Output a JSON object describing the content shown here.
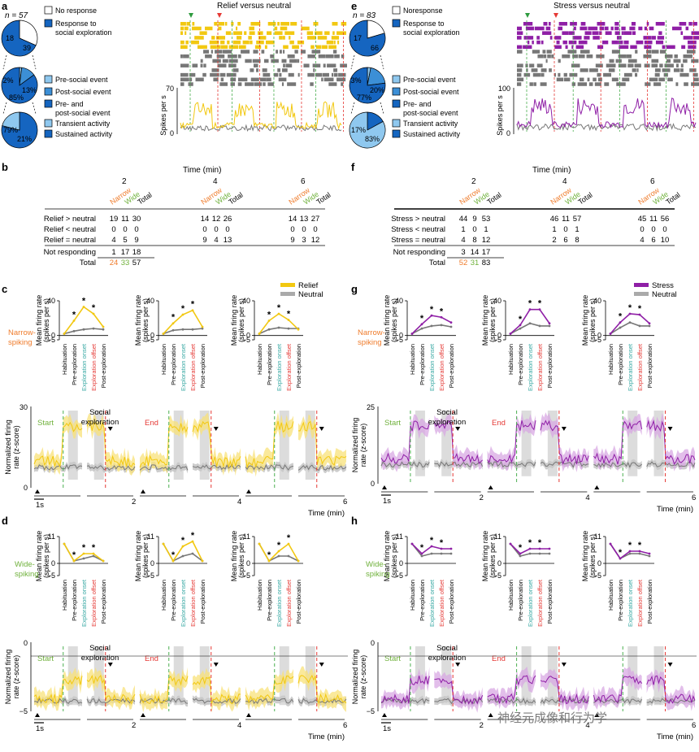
{
  "colors": {
    "relief": "#f2c811",
    "relief_fill": "#f8e27a",
    "stress": "#8f1fa6",
    "stress_fill": "#d8a8e3",
    "neutral": "#777777",
    "neutral_fill": "#c8c8c8",
    "narrow": "#ef7c2c",
    "wide": "#70b13c",
    "start_line": "#4caf50",
    "end_line": "#e53935",
    "onset": "#35a7a2",
    "offset": "#e53935",
    "pie_dark": "#1565c0",
    "pie_mid": "#3c8fd6",
    "pie_light": "#8fc8ef"
  },
  "panel_letters": [
    "a",
    "b",
    "c",
    "d",
    "e",
    "f",
    "g",
    "h"
  ],
  "watermark": "神经元成像和行为学",
  "panel_a": {
    "n_label": "n = 57",
    "pie1": {
      "values": [
        18,
        39
      ],
      "labels": [
        "18",
        "39"
      ]
    },
    "pie2": {
      "values": [
        2,
        13,
        85
      ],
      "labels": [
        "2%",
        "13%",
        "85%"
      ]
    },
    "pie3": {
      "values": [
        79,
        21
      ],
      "labels": [
        "79%",
        "21%"
      ]
    },
    "legend": [
      "No response",
      "Response to social exploration",
      "Pre-social event",
      "Post-social event",
      "Pre- and post-social event",
      "Transient activity",
      "Sustained activity"
    ],
    "raster_title": "Relief versus neutral",
    "y_label": "Spikes per s",
    "y_max": "70",
    "y_min": "0"
  },
  "panel_e": {
    "n_label": "n = 83",
    "pie1": {
      "values": [
        17,
        66
      ],
      "labels": [
        "17",
        "66"
      ]
    },
    "pie2": {
      "values": [
        3,
        20,
        77
      ],
      "labels": [
        "3%",
        "20%",
        "77%"
      ]
    },
    "pie3": {
      "values": [
        17,
        83
      ],
      "labels": [
        "17%",
        "83%"
      ]
    },
    "legend": [
      "Noresponse",
      "Response to social exploration",
      "Pre-social event",
      "Post-social event",
      "Pre- and post-social event",
      "Transient activity",
      "Sustained activity"
    ],
    "raster_title": "Stress versus neutral",
    "y_label": "Spikes per s",
    "y_max": "100",
    "y_min": "0"
  },
  "table_b": {
    "time_header": "Time (min)",
    "times": [
      "2",
      "4",
      "6"
    ],
    "col_labels": [
      "Narrow",
      "Wide",
      "Total"
    ],
    "rows": [
      {
        "label": "Relief > neutral",
        "values": [
          "19",
          "11",
          "30",
          "14",
          "12",
          "26",
          "14",
          "13",
          "27"
        ]
      },
      {
        "label": "Relief < neutral",
        "values": [
          "0",
          "0",
          "0",
          "0",
          "0",
          "0",
          "0",
          "0",
          "0"
        ]
      },
      {
        "label": "Relief = neutral",
        "values": [
          "4",
          "5",
          "9",
          "9",
          "4",
          "13",
          "9",
          "3",
          "12"
        ]
      },
      {
        "label": "Not responding",
        "values": [
          "1",
          "17",
          "18"
        ]
      },
      {
        "label": "Total",
        "values": [
          "24",
          "33",
          "57"
        ]
      }
    ]
  },
  "table_f": {
    "time_header": "Time (min)",
    "times": [
      "2",
      "4",
      "6"
    ],
    "col_labels": [
      "Narrow",
      "Wide",
      "Total"
    ],
    "rows": [
      {
        "label": "Stress > neutral",
        "values": [
          "44",
          "9",
          "53",
          "46",
          "11",
          "57",
          "45",
          "11",
          "56"
        ]
      },
      {
        "label": "Stress < neutral",
        "values": [
          "1",
          "0",
          "1",
          "1",
          "0",
          "1",
          "0",
          "0",
          "0"
        ]
      },
      {
        "label": "Stress = neutral",
        "values": [
          "4",
          "8",
          "12",
          "2",
          "6",
          "8",
          "4",
          "6",
          "10"
        ]
      },
      {
        "label": "Not responding",
        "values": [
          "3",
          "14",
          "17"
        ]
      },
      {
        "label": "Total",
        "values": [
          "52",
          "31",
          "83"
        ]
      }
    ]
  },
  "event_labels": [
    "Habituation",
    "Pre-exploration",
    "Exploration onset",
    "Exploration offset",
    "Post-exploration"
  ],
  "mean_rate_ylabel": [
    "Mean firing rate",
    "(spikes per s)"
  ],
  "norm_ylabel": [
    "Normalized firing",
    "rate (z-score)"
  ],
  "row_labels": {
    "narrow": [
      "Narrow-",
      "spiking"
    ],
    "wide": [
      "Wide-",
      "spiking"
    ]
  },
  "trace_labels": {
    "start": "Start",
    "social": [
      "Social",
      "exploration"
    ],
    "end": "End",
    "scale": "1s",
    "time_axis": "Time (min)",
    "time_ticks": [
      "2",
      "4",
      "6"
    ]
  },
  "panel_c": {
    "legend": [
      "Relief",
      "Neutral"
    ],
    "y_ticks": [
      "40",
      "0",
      "−5"
    ],
    "stars": "*",
    "trace_yticks": [
      "30",
      "0"
    ]
  },
  "panel_d": {
    "y_ticks": [
      "11",
      "0",
      "−5"
    ],
    "trace_yticks": [
      "0",
      "−5"
    ]
  },
  "panel_g": {
    "legend": [
      "Stress",
      "Neutral"
    ],
    "y_ticks": [
      "40",
      "0",
      "−5"
    ],
    "trace_yticks": [
      "25",
      "0"
    ]
  },
  "panel_h": {
    "y_ticks": [
      "11",
      "0",
      "−5"
    ],
    "trace_yticks": [
      "0",
      "−5"
    ]
  },
  "chart_data": [
    {
      "type": "line",
      "title": "c narrow relief 2 min",
      "categories": [
        "Habituation",
        "Pre-exploration",
        "Exploration onset",
        "Exploration offset",
        "Post-exploration"
      ],
      "series": [
        {
          "name": "Relief",
          "values": [
            2,
            17,
            33,
            25,
            10
          ]
        },
        {
          "name": "Neutral",
          "values": [
            2,
            5,
            7,
            8,
            7
          ]
        }
      ],
      "ylim": [
        -5,
        40
      ]
    },
    {
      "type": "line",
      "title": "c narrow relief 4 min",
      "categories": [
        "Habituation",
        "Pre-exploration",
        "Exploration onset",
        "Exploration offset",
        "Post-exploration"
      ],
      "series": [
        {
          "name": "Relief",
          "values": [
            2,
            14,
            24,
            29,
            10
          ]
        },
        {
          "name": "Neutral",
          "values": [
            2,
            6,
            7,
            7,
            8
          ]
        }
      ],
      "ylim": [
        -5,
        40
      ]
    },
    {
      "type": "line",
      "title": "c narrow relief 6 min",
      "categories": [
        "Habituation",
        "Pre-exploration",
        "Exploration onset",
        "Exploration offset",
        "Post-exploration"
      ],
      "series": [
        {
          "name": "Relief",
          "values": [
            2,
            17,
            25,
            18,
            7
          ]
        },
        {
          "name": "Neutral",
          "values": [
            2,
            7,
            9,
            8,
            8
          ]
        }
      ],
      "ylim": [
        -5,
        40
      ]
    },
    {
      "type": "line",
      "title": "d wide relief 2 min",
      "categories": [
        "Habituation",
        "Pre-exploration",
        "Exploration onset",
        "Exploration offset",
        "Post-exploration"
      ],
      "series": [
        {
          "name": "Relief",
          "values": [
            8,
            1,
            4,
            4,
            1
          ]
        },
        {
          "name": "Neutral",
          "values": [
            8,
            1,
            2,
            3,
            1
          ]
        }
      ],
      "ylim": [
        -5,
        11
      ]
    },
    {
      "type": "line",
      "title": "d wide relief 4 min",
      "categories": [
        "Habituation",
        "Pre-exploration",
        "Exploration onset",
        "Exploration offset",
        "Post-exploration"
      ],
      "series": [
        {
          "name": "Relief",
          "values": [
            8,
            1,
            7,
            9,
            1
          ]
        },
        {
          "name": "Neutral",
          "values": [
            8,
            1,
            3,
            4,
            1
          ]
        }
      ],
      "ylim": [
        -5,
        11
      ]
    },
    {
      "type": "line",
      "title": "d wide relief 6 min",
      "categories": [
        "Habituation",
        "Pre-exploration",
        "Exploration onset",
        "Exploration offset",
        "Post-exploration"
      ],
      "series": [
        {
          "name": "Relief",
          "values": [
            8,
            1,
            5,
            8,
            1
          ]
        },
        {
          "name": "Neutral",
          "values": [
            8,
            1,
            3,
            3,
            1
          ]
        }
      ],
      "ylim": [
        -5,
        11
      ]
    },
    {
      "type": "line",
      "title": "g narrow stress 2 min",
      "categories": [
        "Habituation",
        "Pre-exploration",
        "Exploration onset",
        "Exploration offset",
        "Post-exploration"
      ],
      "series": [
        {
          "name": "Stress",
          "values": [
            2,
            13,
            23,
            21,
            15
          ]
        },
        {
          "name": "Neutral",
          "values": [
            2,
            8,
            11,
            12,
            10
          ]
        }
      ],
      "ylim": [
        -5,
        40
      ]
    },
    {
      "type": "line",
      "title": "g narrow stress 4 min",
      "categories": [
        "Habituation",
        "Pre-exploration",
        "Exploration onset",
        "Exploration offset",
        "Post-exploration"
      ],
      "series": [
        {
          "name": "Stress",
          "values": [
            2,
            12,
            30,
            30,
            14
          ]
        },
        {
          "name": "Neutral",
          "values": [
            2,
            8,
            14,
            11,
            11
          ]
        }
      ],
      "ylim": [
        -5,
        40
      ]
    },
    {
      "type": "line",
      "title": "g narrow stress 6 min",
      "categories": [
        "Habituation",
        "Pre-exploration",
        "Exploration onset",
        "Exploration offset",
        "Post-exploration"
      ],
      "series": [
        {
          "name": "Stress",
          "values": [
            2,
            15,
            25,
            24,
            14
          ]
        },
        {
          "name": "Neutral",
          "values": [
            2,
            9,
            15,
            11,
            11
          ]
        }
      ],
      "ylim": [
        -5,
        40
      ]
    },
    {
      "type": "line",
      "title": "h wide stress 2 min",
      "categories": [
        "Habituation",
        "Pre-exploration",
        "Exploration onset",
        "Exploration offset",
        "Post-exploration"
      ],
      "series": [
        {
          "name": "Stress",
          "values": [
            8,
            4,
            7,
            6,
            6
          ]
        },
        {
          "name": "Neutral",
          "values": [
            8,
            3,
            4,
            4,
            4
          ]
        }
      ],
      "ylim": [
        -5,
        11
      ]
    },
    {
      "type": "line",
      "title": "h wide stress 4 min",
      "categories": [
        "Habituation",
        "Pre-exploration",
        "Exploration onset",
        "Exploration offset",
        "Post-exploration"
      ],
      "series": [
        {
          "name": "Stress",
          "values": [
            8,
            4,
            6,
            6,
            6
          ]
        },
        {
          "name": "Neutral",
          "values": [
            8,
            3,
            4,
            4,
            4
          ]
        }
      ],
      "ylim": [
        -5,
        11
      ]
    },
    {
      "type": "line",
      "title": "h wide stress 6 min",
      "categories": [
        "Habituation",
        "Pre-exploration",
        "Exploration onset",
        "Exploration offset",
        "Post-exploration"
      ],
      "series": [
        {
          "name": "Stress",
          "values": [
            8,
            2,
            5,
            5,
            4
          ]
        },
        {
          "name": "Neutral",
          "values": [
            8,
            2,
            4,
            4,
            3
          ]
        }
      ],
      "ylim": [
        -5,
        11
      ]
    }
  ]
}
